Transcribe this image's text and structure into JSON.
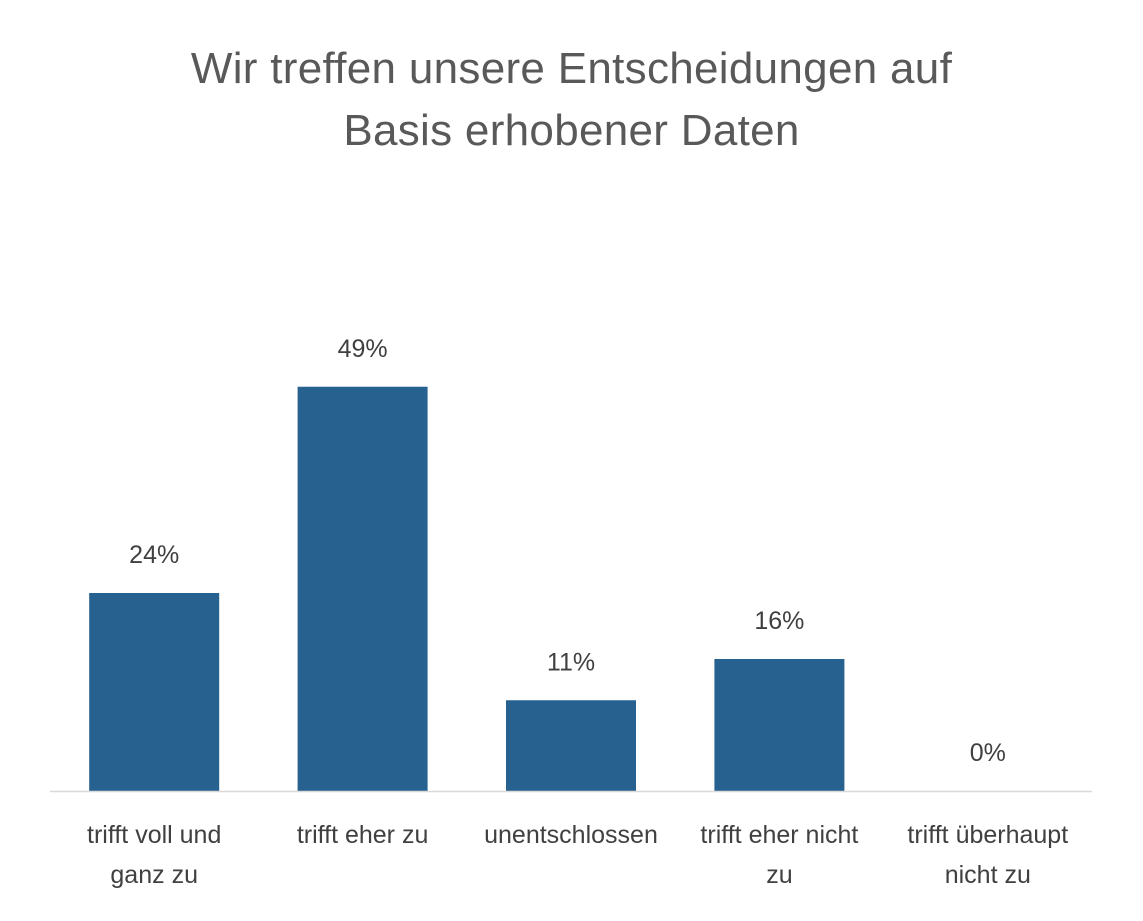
{
  "chart_data": {
    "type": "bar",
    "title_lines": [
      "Wir treffen unsere Entscheidungen auf",
      "Basis erhobener Daten"
    ],
    "categories": [
      [
        "trifft voll und",
        "ganz zu"
      ],
      [
        "trifft eher zu"
      ],
      [
        "unentschlossen"
      ],
      [
        "trifft eher nicht",
        "zu"
      ],
      [
        "trifft überhaupt",
        "nicht zu"
      ]
    ],
    "values": [
      24,
      49,
      11,
      16,
      0
    ],
    "value_labels": [
      "24%",
      "49%",
      "11%",
      "16%",
      "0%"
    ],
    "unit": "%",
    "bar_color": "#27618F",
    "grid": false,
    "legend": "none"
  }
}
